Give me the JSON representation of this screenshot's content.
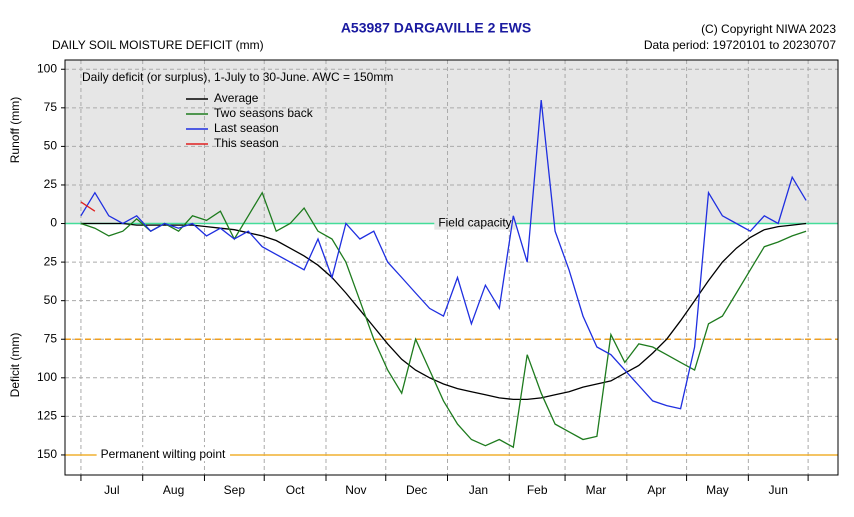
{
  "chart_data": {
    "type": "line",
    "title": "A53987  DARGAVILLE 2 EWS",
    "subtitle": "DAILY SOIL MOISTURE DEFICIT (mm)",
    "copyright": "(C) Copyright NIWA  2023",
    "data_period": "Data period:  19720101  to  20230707",
    "annotation": "Daily deficit (or surplus), 1-July to 30-June.  AWC = 150mm",
    "y_label_upper": "Runoff (mm)",
    "y_label_lower": "Deficit (mm)",
    "x": [
      0,
      7,
      14,
      21,
      28,
      35,
      42,
      49,
      56,
      63,
      70,
      77,
      84,
      91,
      98,
      105,
      112,
      119,
      126,
      133,
      140,
      147,
      154,
      161,
      168,
      175,
      182,
      189,
      196,
      203,
      210,
      217,
      224,
      231,
      238,
      245,
      252,
      259,
      266,
      273,
      280,
      287,
      294,
      301,
      308,
      315,
      322,
      329,
      336,
      343,
      350,
      357,
      364
    ],
    "series": [
      {
        "name": "Average",
        "color": "#000000",
        "values": [
          0,
          0,
          0,
          0,
          -1,
          -1,
          -1,
          -1,
          -1,
          -2,
          -3,
          -4,
          -6,
          -8,
          -11,
          -16,
          -21,
          -27,
          -35,
          -45,
          -56,
          -67,
          -78,
          -88,
          -95,
          -100,
          -104,
          -107,
          -109,
          -111,
          -113,
          -114,
          -114,
          -113,
          -111,
          -109,
          -106,
          -104,
          -102,
          -97,
          -92,
          -84,
          -75,
          -63,
          -50,
          -37,
          -25,
          -16,
          -9,
          -4,
          -2,
          -1,
          0
        ]
      },
      {
        "name": "Two seasons back",
        "color": "#1e7b1e",
        "values": [
          0,
          -3,
          -8,
          -5,
          3,
          -5,
          0,
          -5,
          5,
          2,
          8,
          -10,
          5,
          20,
          -5,
          0,
          10,
          -5,
          -10,
          -25,
          -50,
          -75,
          -95,
          -110,
          -75,
          -95,
          -115,
          -130,
          -140,
          -144,
          -140,
          -145,
          -85,
          -110,
          -130,
          -135,
          -140,
          -138,
          -72,
          -90,
          -78,
          -80,
          -85,
          -90,
          -95,
          -65,
          -60,
          -45,
          -30,
          -15,
          -12,
          -8,
          -5
        ]
      },
      {
        "name": "Last season",
        "color": "#1f2fe0",
        "values": [
          5,
          20,
          5,
          0,
          5,
          -5,
          0,
          -3,
          0,
          -8,
          -3,
          -10,
          -5,
          -15,
          -20,
          -25,
          -30,
          -10,
          -35,
          0,
          -10,
          -5,
          -25,
          -35,
          -45,
          -55,
          -60,
          -35,
          -65,
          -40,
          -55,
          5,
          -25,
          80,
          -5,
          -30,
          -60,
          -80,
          -85,
          -95,
          -105,
          -115,
          -118,
          -120,
          -80,
          20,
          5,
          0,
          -5,
          5,
          0,
          30,
          15
        ]
      },
      {
        "name": "This season",
        "color": "#e02020",
        "values": [
          14,
          8,
          null,
          null,
          null,
          null,
          null,
          null,
          null,
          null,
          null,
          null,
          null,
          null,
          null,
          null,
          null,
          null,
          null,
          null,
          null,
          null,
          null,
          null,
          null,
          null,
          null,
          null,
          null,
          null,
          null,
          null,
          null,
          null,
          null,
          null,
          null,
          null,
          null,
          null,
          null,
          null,
          null,
          null,
          null,
          null,
          null,
          null,
          null,
          null,
          null,
          null,
          null
        ]
      }
    ],
    "xlim": [
      -8,
      380
    ],
    "xticks": [
      {
        "value": 0,
        "label": "Jul"
      },
      {
        "value": 31,
        "label": "Aug"
      },
      {
        "value": 62,
        "label": "Sep"
      },
      {
        "value": 92,
        "label": "Oct"
      },
      {
        "value": 123,
        "label": "Nov"
      },
      {
        "value": 153,
        "label": "Dec"
      },
      {
        "value": 184,
        "label": "Jan"
      },
      {
        "value": 215,
        "label": "Feb"
      },
      {
        "value": 243,
        "label": "Mar"
      },
      {
        "value": 274,
        "label": "Apr"
      },
      {
        "value": 304,
        "label": "May"
      },
      {
        "value": 335,
        "label": "Jun"
      },
      {
        "value": 365,
        "label": null
      }
    ],
    "ylim": [
      -163,
      106
    ],
    "yticks": [
      100,
      75,
      50,
      25,
      0,
      {
        "value": -25,
        "label": "25"
      },
      {
        "value": -50,
        "label": "50"
      },
      {
        "value": -75,
        "label": "75"
      },
      {
        "value": -100,
        "label": "100"
      },
      {
        "value": -125,
        "label": "125"
      },
      {
        "value": -150,
        "label": "150"
      }
    ],
    "reference_lines": [
      {
        "value": 0,
        "label": "Field capacity",
        "color": "#44dd99",
        "dashed": false
      },
      {
        "value": -75,
        "color": "#f0a020",
        "dashed": true
      },
      {
        "value": -150,
        "label": "Permanent wilting point",
        "color": "#f0b030",
        "dashed": false
      }
    ],
    "runoff_background": "#e6e6e6",
    "grid": true
  }
}
